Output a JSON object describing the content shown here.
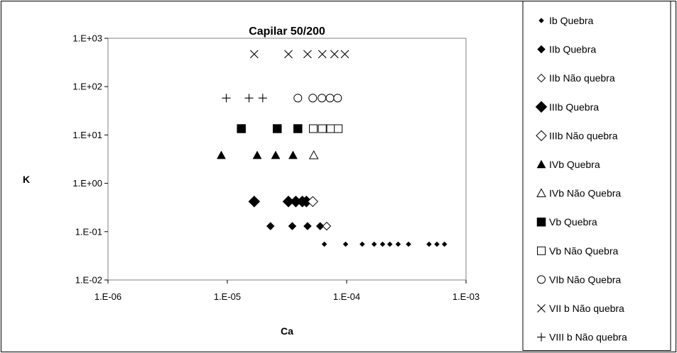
{
  "chart_data": {
    "type": "scatter",
    "title": "Capilar 50/200",
    "xlabel": "Ca",
    "ylabel": "K",
    "xscale": "log",
    "yscale": "log",
    "xlim": [
      1e-06,
      0.001
    ],
    "ylim": [
      0.01,
      1000
    ],
    "x_tick_values": [
      1e-06,
      1e-05,
      0.0001,
      0.001
    ],
    "x_tick_labels": [
      "1.E-06",
      "1.E-05",
      "1.E-04",
      "1.E-03"
    ],
    "y_tick_values": [
      0.01,
      0.1,
      1,
      10,
      100,
      1000
    ],
    "y_tick_labels": [
      "1.E-02",
      "1.E-01",
      "1.E+00",
      "1.E+01",
      "1.E+02",
      "1.E+03"
    ],
    "grid": false,
    "legend_position": "right",
    "series": [
      {
        "name": "Ib Quebra",
        "marker": "diamond-small",
        "points": [
          [
            6.5e-05,
            0.055
          ],
          [
            9.8e-05,
            0.055
          ],
          [
            0.000135,
            0.055
          ],
          [
            0.00017,
            0.055
          ],
          [
            0.0002,
            0.055
          ],
          [
            0.00023,
            0.055
          ],
          [
            0.00027,
            0.055
          ],
          [
            0.00033,
            0.055
          ],
          [
            0.00049,
            0.055
          ],
          [
            0.00057,
            0.055
          ],
          [
            0.00066,
            0.055
          ]
        ]
      },
      {
        "name": "IIb Quebra",
        "marker": "diamond-medium",
        "points": [
          [
            2.3e-05,
            0.13
          ],
          [
            3.5e-05,
            0.13
          ],
          [
            4.7e-05,
            0.13
          ],
          [
            6e-05,
            0.13
          ]
        ]
      },
      {
        "name": "IIb Não quebra",
        "marker": "diamond-open-medium",
        "points": [
          [
            6.8e-05,
            0.13
          ]
        ]
      },
      {
        "name": "IIIb Quebra",
        "marker": "diamond-large",
        "points": [
          [
            1.68e-05,
            0.42
          ],
          [
            3.25e-05,
            0.42
          ],
          [
            3.75e-05,
            0.42
          ],
          [
            4.25e-05,
            0.42
          ],
          [
            4.6e-05,
            0.42
          ]
        ]
      },
      {
        "name": "IIIb Não quebra",
        "marker": "diamond-open-large",
        "points": [
          [
            5.2e-05,
            0.42
          ]
        ]
      },
      {
        "name": "IVb Quebra",
        "marker": "triangle",
        "points": [
          [
            8.9e-06,
            3.8
          ],
          [
            1.78e-05,
            3.8
          ],
          [
            2.54e-05,
            3.8
          ],
          [
            3.55e-05,
            3.8
          ]
        ]
      },
      {
        "name": "IVb Não Quebra",
        "marker": "triangle-open",
        "points": [
          [
            5.3e-05,
            3.8
          ]
        ]
      },
      {
        "name": "Vb Quebra",
        "marker": "square",
        "points": [
          [
            1.31e-05,
            13.5
          ],
          [
            2.62e-05,
            13.5
          ],
          [
            3.9e-05,
            13.5
          ]
        ]
      },
      {
        "name": "Vb Não Quebra",
        "marker": "square-open",
        "points": [
          [
            5.25e-05,
            13.5
          ],
          [
            6.25e-05,
            13.5
          ],
          [
            7.35e-05,
            13.5
          ],
          [
            8.5e-05,
            13.5
          ]
        ]
      },
      {
        "name": "VIb  Não Quebra",
        "marker": "circle-open",
        "points": [
          [
            3.9e-05,
            58
          ],
          [
            5.2e-05,
            58
          ],
          [
            6.2e-05,
            58
          ],
          [
            7.25e-05,
            58
          ],
          [
            8.4e-05,
            58
          ]
        ]
      },
      {
        "name": "VII b Não quebra",
        "marker": "x",
        "points": [
          [
            1.68e-05,
            470
          ],
          [
            3.25e-05,
            470
          ],
          [
            4.7e-05,
            470
          ],
          [
            6.25e-05,
            470
          ],
          [
            7.9e-05,
            470
          ],
          [
            9.65e-05,
            470
          ]
        ]
      },
      {
        "name": "VIII b Não quebra",
        "marker": "plus",
        "points": [
          [
            9.8e-06,
            58
          ],
          [
            1.52e-05,
            58
          ],
          [
            1.98e-05,
            58
          ]
        ]
      }
    ]
  }
}
